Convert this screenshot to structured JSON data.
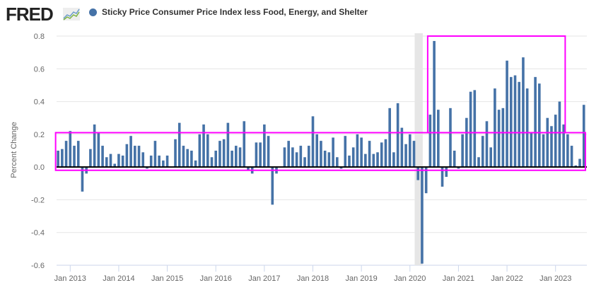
{
  "header": {
    "logo_text": "FRED",
    "logo_icon": "line-chart-icon",
    "legend_label": "Sticky Price Consumer Price Index less Food, Energy, and Shelter",
    "series_color": "#4572a7"
  },
  "annotations": {
    "highlight_color": "#ff00ff",
    "recession_color": "#e6e6e6",
    "boxes": [
      {
        "name": "pre-pandemic-range-box",
        "x_start": "2012-10",
        "x_end": "2023-09",
        "y_range": [
          -0.02,
          0.21
        ]
      },
      {
        "name": "post-pandemic-surge-box",
        "x_start": "2020-06",
        "x_end": "2023-04",
        "y_range": [
          0.21,
          0.8
        ]
      }
    ],
    "recession": {
      "start": "2020-02",
      "end": "2020-04"
    }
  },
  "chart_data": {
    "type": "bar",
    "title": "Sticky Price Consumer Price Index less Food, Energy, and Shelter",
    "xlabel": "",
    "ylabel": "Percent Change",
    "ylim": [
      -0.6,
      0.8
    ],
    "yticks": [
      -0.6,
      -0.4,
      -0.2,
      0.0,
      0.2,
      0.4,
      0.6,
      0.8
    ],
    "ytick_labels": [
      "-0.6",
      "-0.4",
      "-0.2",
      "0.0",
      "0.2",
      "0.4",
      "0.6",
      "0.8"
    ],
    "xticks": [
      "Jan 2013",
      "Jan 2014",
      "Jan 2015",
      "Jan 2016",
      "Jan 2017",
      "Jan 2018",
      "Jan 2019",
      "Jan 2020",
      "Jan 2021",
      "Jan 2022",
      "Jan 2023"
    ],
    "grid": true,
    "legend": "top-left",
    "start_month": "2012-10",
    "series": [
      {
        "name": "Sticky Price Consumer Price Index less Food, Energy, and Shelter",
        "frequency": "monthly",
        "values": [
          0.1,
          0.11,
          0.16,
          0.22,
          0.13,
          0.16,
          -0.15,
          -0.04,
          0.11,
          0.26,
          0.21,
          0.13,
          0.06,
          0.08,
          0.02,
          0.08,
          0.07,
          0.14,
          0.19,
          0.13,
          0.13,
          0.09,
          -0.01,
          0.07,
          0.16,
          0.07,
          0.04,
          0.07,
          0.0,
          0.17,
          0.27,
          0.13,
          0.11,
          0.1,
          0.04,
          0.2,
          0.26,
          0.2,
          0.06,
          0.1,
          0.16,
          0.17,
          0.27,
          0.1,
          0.13,
          0.12,
          0.28,
          -0.02,
          -0.04,
          0.15,
          0.15,
          0.26,
          0.19,
          -0.23,
          -0.04,
          0.0,
          0.12,
          0.16,
          0.12,
          0.09,
          0.13,
          0.06,
          0.13,
          0.31,
          0.2,
          0.16,
          0.1,
          0.09,
          0.18,
          0.06,
          -0.01,
          0.19,
          0.07,
          0.12,
          0.2,
          0.18,
          0.08,
          0.16,
          0.08,
          0.09,
          0.15,
          0.17,
          0.36,
          0.09,
          0.39,
          0.24,
          0.14,
          0.2,
          0.16,
          -0.08,
          -0.59,
          -0.16,
          0.32,
          0.77,
          0.35,
          -0.12,
          -0.06,
          0.36,
          0.1,
          -0.01,
          0.2,
          0.3,
          0.46,
          0.47,
          0.06,
          0.19,
          0.28,
          0.12,
          0.48,
          0.35,
          0.36,
          0.65,
          0.55,
          0.56,
          0.52,
          0.67,
          0.48,
          0.21,
          0.55,
          0.51,
          0.2,
          0.3,
          0.25,
          0.32,
          0.4,
          0.26,
          0.2,
          0.13,
          0.01,
          0.05,
          0.38
        ]
      }
    ]
  }
}
